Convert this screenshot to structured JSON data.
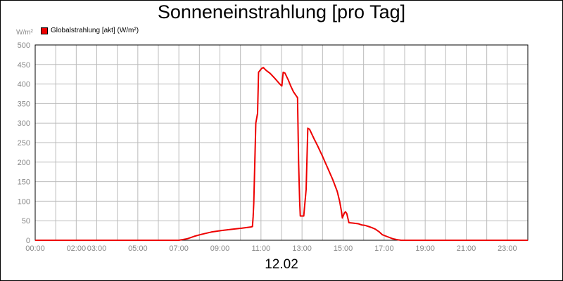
{
  "title": "Sonneneinstrahlung [pro Tag]",
  "y_unit_label": "W/m²",
  "x_caption": "12.02",
  "colors": {
    "series": "#ee0000",
    "grid": "#bbbbbb",
    "tick_text": "#888888",
    "axis": "#000000"
  },
  "chart_data": {
    "type": "line",
    "title": "Sonneneinstrahlung [pro Tag]",
    "xlabel": "12.02",
    "ylabel": "W/m²",
    "ylim": [
      0,
      500
    ],
    "xlim": [
      "00:00",
      "24:00"
    ],
    "yticks": [
      0,
      50,
      100,
      150,
      200,
      250,
      300,
      350,
      400,
      450,
      500
    ],
    "xticks": [
      {
        "t": "00:00",
        "label": "00:00"
      },
      {
        "t": "02:00",
        "label": "02:00"
      },
      {
        "t": "03:00",
        "label": "03:00"
      },
      {
        "t": "05:00",
        "label": "05:00"
      },
      {
        "t": "07:00",
        "label": "07:00"
      },
      {
        "t": "09:00",
        "label": "09:00"
      },
      {
        "t": "11:00",
        "label": "11:00"
      },
      {
        "t": "13:00",
        "label": "13:00"
      },
      {
        "t": "15:00",
        "label": "15:00"
      },
      {
        "t": "17:00",
        "label": "17:00"
      },
      {
        "t": "19:00",
        "label": "19:00"
      },
      {
        "t": "21:00",
        "label": "21:00"
      },
      {
        "t": "23:00",
        "label": "23:00"
      }
    ],
    "grid": true,
    "legend": "top-left",
    "series": [
      {
        "name": "Globalstrahlung [akt] (W/m²)",
        "color": "#ee0000",
        "points": [
          [
            "00:00",
            0
          ],
          [
            "07:00",
            0
          ],
          [
            "07:25",
            4
          ],
          [
            "07:45",
            10
          ],
          [
            "08:05",
            15
          ],
          [
            "08:35",
            21
          ],
          [
            "09:05",
            25
          ],
          [
            "09:35",
            28
          ],
          [
            "10:05",
            31
          ],
          [
            "10:30",
            34
          ],
          [
            "10:35",
            35
          ],
          [
            "10:37",
            60
          ],
          [
            "10:39",
            95
          ],
          [
            "10:42",
            200
          ],
          [
            "10:45",
            300
          ],
          [
            "10:50",
            325
          ],
          [
            "10:53",
            430
          ],
          [
            "11:02",
            440
          ],
          [
            "11:07",
            442
          ],
          [
            "11:15",
            435
          ],
          [
            "11:27",
            427
          ],
          [
            "11:40",
            415
          ],
          [
            "11:55",
            400
          ],
          [
            "12:01",
            395
          ],
          [
            "12:05",
            430
          ],
          [
            "12:10",
            428
          ],
          [
            "12:20",
            410
          ],
          [
            "12:27",
            395
          ],
          [
            "12:35",
            380
          ],
          [
            "12:47",
            365
          ],
          [
            "12:50",
            200
          ],
          [
            "12:53",
            100
          ],
          [
            "12:55",
            62
          ],
          [
            "13:05",
            62
          ],
          [
            "13:12",
            130
          ],
          [
            "13:17",
            287
          ],
          [
            "13:22",
            284
          ],
          [
            "13:35",
            260
          ],
          [
            "13:45",
            243
          ],
          [
            "14:00",
            215
          ],
          [
            "14:15",
            185
          ],
          [
            "14:30",
            155
          ],
          [
            "14:43",
            125
          ],
          [
            "14:50",
            100
          ],
          [
            "14:55",
            75
          ],
          [
            "14:58",
            57
          ],
          [
            "15:04",
            70
          ],
          [
            "15:07",
            73
          ],
          [
            "15:11",
            68
          ],
          [
            "15:17",
            45
          ],
          [
            "15:28",
            44
          ],
          [
            "15:45",
            42
          ],
          [
            "15:55",
            39
          ],
          [
            "16:05",
            38
          ],
          [
            "16:15",
            35
          ],
          [
            "16:25",
            32
          ],
          [
            "16:35",
            28
          ],
          [
            "16:45",
            22
          ],
          [
            "16:55",
            14
          ],
          [
            "17:10",
            9
          ],
          [
            "17:25",
            4
          ],
          [
            "17:40",
            1
          ],
          [
            "17:50",
            0
          ],
          [
            "24:00",
            0
          ]
        ]
      }
    ]
  }
}
